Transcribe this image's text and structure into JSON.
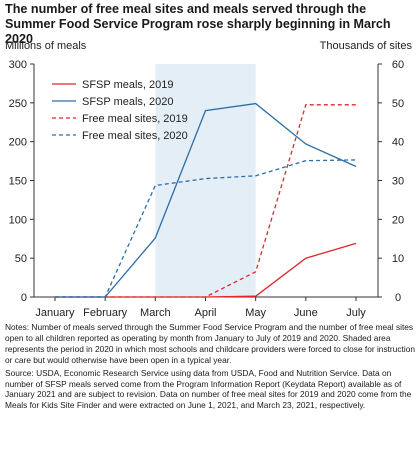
{
  "title": "The number of free meal sites and meals served through the Summer Food Service Program rose sharply beginning in March 2020",
  "notes": "Notes: Number of meals served through the Summer Food Service Program and the number of free meal sites open to all children reported as operating by month from January to July of 2019 and 2020. Shaded area represents the period in 2020 in which most schools and childcare providers were forced to close for instruction or care but would otherwise have been open in a typical year.",
  "source": "Source: USDA, Economic Research Service using data from USDA, Food and Nutrition Service. Data on number of SFSP meals served come from the Program Information Report (Keydata Report) available as of January 2021 and are subject to revision. Data on number of free meal sites for 2019 and 2020 come from the Meals for Kids Site Finder and were extracted on June 1, 2021, and March 23, 2021, respectively.",
  "colors": {
    "red": "#e0262b",
    "blue": "#2b6ea8",
    "shade": "#e4eef7",
    "axis": "#333333"
  },
  "chart_data": {
    "type": "line",
    "categories": [
      "January",
      "February",
      "March",
      "April",
      "May",
      "June",
      "July"
    ],
    "ylabel_left": "Millions of meals",
    "ylabel_right": "Thousands of sites",
    "ylim_left": [
      0,
      300
    ],
    "yticks_left": [
      0,
      50,
      100,
      150,
      200,
      250,
      300
    ],
    "ylim_right": [
      0,
      60
    ],
    "yticks_right": [
      0,
      10,
      20,
      30,
      40,
      50,
      60
    ],
    "shaded_range": [
      "March",
      "May"
    ],
    "grid": false,
    "legend_position": "top-left",
    "series": [
      {
        "name": "SFSP meals, 2019",
        "axis": "left",
        "style": "solid",
        "color": "#e0262b",
        "values": [
          0,
          0,
          0,
          0,
          1,
          50,
          69
        ]
      },
      {
        "name": "SFSP meals, 2020",
        "axis": "left",
        "style": "solid",
        "color": "#2b6ea8",
        "values": [
          0,
          0,
          76,
          240,
          249,
          197,
          168
        ]
      },
      {
        "name": "Free meal sites, 2019",
        "axis": "right",
        "style": "dashed",
        "color": "#e0262b",
        "values": [
          0,
          0,
          0,
          0,
          6.5,
          49.5,
          49.5
        ]
      },
      {
        "name": "Free meal sites, 2020",
        "axis": "right",
        "style": "dashed",
        "color": "#2b6ea8",
        "values": [
          0,
          0,
          28.7,
          30.5,
          31.2,
          35.1,
          35.3
        ]
      }
    ]
  }
}
